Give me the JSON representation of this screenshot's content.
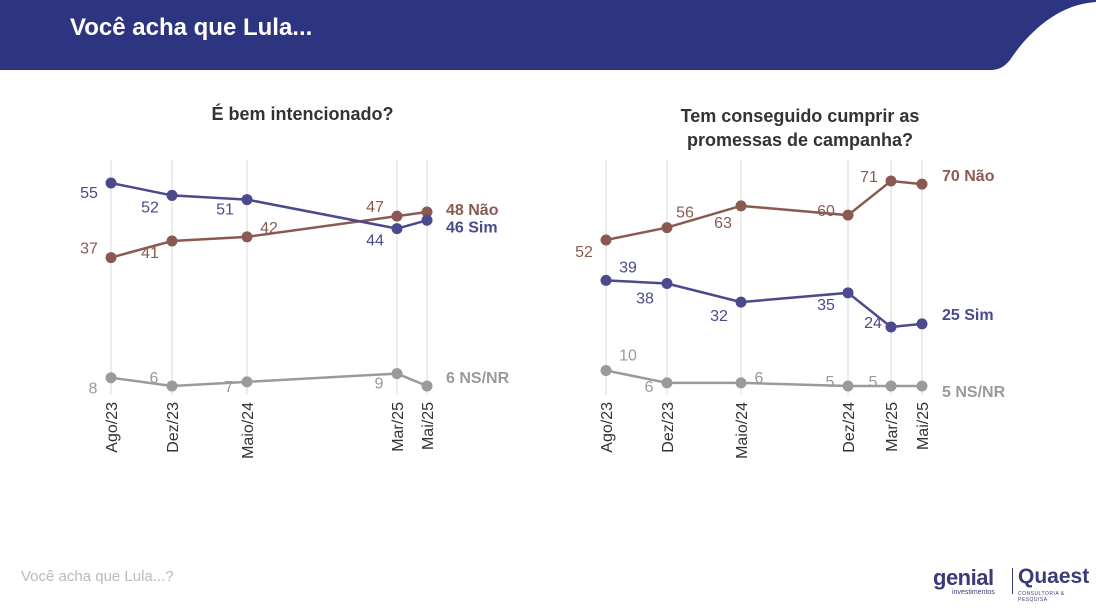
{
  "header": {
    "title": "Você acha que Lula..."
  },
  "footer": {
    "caption": "Você acha que Lula...?",
    "logo_genial": "genial",
    "logo_genial_sub": "investimentos",
    "logo_quaest": "Quaest",
    "logo_quaest_sub": "CONSULTORIA & PESQUISA"
  },
  "colors": {
    "header": "#2e3580",
    "nao": "#8a5a52",
    "sim": "#4a4a8c",
    "nsnr": "#9a9a9a",
    "grid": "#e6e6e6"
  },
  "chart_data": [
    {
      "type": "line",
      "title": "É bem intencionado?",
      "categories": [
        "Ago/23",
        "Dez/23",
        "Maio/24",
        "Mar/25",
        "Mai/25"
      ],
      "series": [
        {
          "name": "Não",
          "end_label": "48 Não",
          "color": "#8a5a52",
          "values": [
            37,
            41,
            42,
            47,
            48
          ]
        },
        {
          "name": "Sim",
          "end_label": "46 Sim",
          "color": "#4a4a8c",
          "values": [
            55,
            52,
            51,
            44,
            46
          ]
        },
        {
          "name": "NS/NR",
          "end_label": "6 NS/NR",
          "color": "#9a9a9a",
          "values": [
            8,
            6,
            7,
            9,
            6
          ]
        }
      ]
    },
    {
      "type": "line",
      "title": "Tem conseguido cumprir as promessas de campanha?",
      "categories": [
        "Ago/23",
        "Dez/23",
        "Maio/24",
        "Dez/24",
        "Mar/25",
        "Mai/25"
      ],
      "series": [
        {
          "name": "Não",
          "end_label": "70 Não",
          "color": "#8a5a52",
          "values": [
            52,
            56,
            63,
            60,
            71,
            70
          ]
        },
        {
          "name": "Sim",
          "end_label": "25 Sim",
          "color": "#4a4a8c",
          "values": [
            39,
            38,
            32,
            35,
            24,
            25
          ]
        },
        {
          "name": "NS/NR",
          "end_label": "5 NS/NR",
          "color": "#9a9a9a",
          "values": [
            10,
            6,
            6,
            5,
            5,
            5
          ]
        }
      ]
    }
  ]
}
